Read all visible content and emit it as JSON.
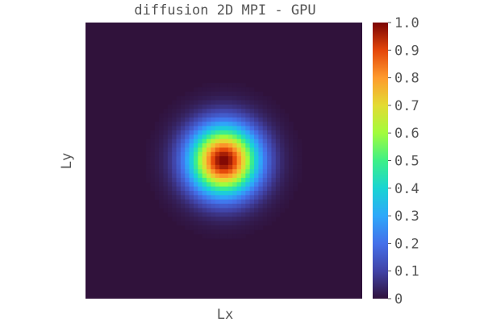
{
  "chart_data": {
    "type": "heatmap",
    "title": "diffusion 2D MPI - GPU",
    "xlabel": "Lx",
    "ylabel": "Ly",
    "colormap": "turbo",
    "clim": [
      0,
      1
    ],
    "colorbar_ticks": [
      "0",
      "0.1",
      "0.2",
      "0.3",
      "0.4",
      "0.5",
      "0.6",
      "0.7",
      "0.8",
      "0.9",
      "1.0"
    ],
    "grid": {
      "nx": 64,
      "ny": 64
    },
    "field": {
      "kind": "gaussian",
      "peak": 1.0,
      "center": [
        0.5,
        0.5
      ],
      "sigma": 0.085
    }
  }
}
